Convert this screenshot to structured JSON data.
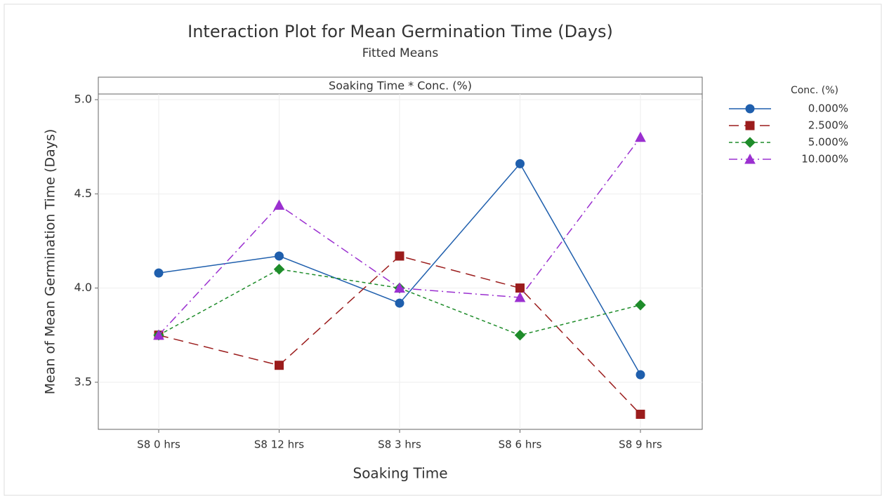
{
  "chart_data": {
    "type": "line",
    "title": "Interaction Plot for Mean Germination Time (Days)",
    "subtitle": "Fitted Means",
    "panel_label": "Soaking Time * Conc. (%)",
    "x_label": "Soaking Time",
    "y_label": "Mean of Mean Germination Time (Days)",
    "legend_title": "Conc. (%)",
    "legend_position": "right",
    "grid": true,
    "categories": [
      "S8 0 hrs",
      "S8 12 hrs",
      "S8 3 hrs",
      "S8 6 hrs",
      "S8 9 hrs"
    ],
    "ylim": [
      3.25,
      5.03
    ],
    "yticks": [
      {
        "value": 3.5,
        "label": "3.5"
      },
      {
        "value": 4,
        "label": "4.0"
      },
      {
        "value": 4.5,
        "label": "4.5"
      },
      {
        "value": 5,
        "label": "5.0"
      }
    ],
    "series": [
      {
        "name": "0.000%",
        "color": "#1f5fad",
        "marker": "circle",
        "dash": "solid",
        "values": [
          4.08,
          4.17,
          3.92,
          4.66,
          3.54
        ]
      },
      {
        "name": "2.500%",
        "color": "#9b1c1c",
        "marker": "square",
        "dash": "long",
        "values": [
          3.75,
          3.59,
          4.17,
          4.0,
          3.33
        ]
      },
      {
        "name": "5.000%",
        "color": "#1e8c2a",
        "marker": "diamond",
        "dash": "short",
        "values": [
          3.75,
          4.1,
          4.0,
          3.75,
          3.91
        ]
      },
      {
        "name": "10.000%",
        "color": "#9b30d0",
        "marker": "triangle",
        "dash": "dashdot",
        "values": [
          3.75,
          4.44,
          4.0,
          3.95,
          4.8
        ]
      }
    ]
  }
}
